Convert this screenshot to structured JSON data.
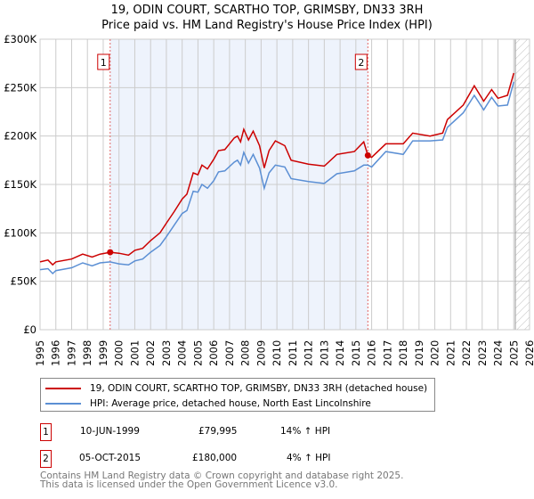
{
  "title": "19, ODIN COURT, SCARTHO TOP, GRIMSBY, DN33 3RH",
  "subtitle": "Price paid vs. HM Land Registry's House Price Index (HPI)",
  "chart_data": {
    "type": "line",
    "title": "19, ODIN COURT, SCARTHO TOP, GRIMSBY, DN33 3RH",
    "subtitle": "Price paid vs. HM Land Registry's House Price Index (HPI)",
    "xlim": [
      1995,
      2026
    ],
    "ylim": [
      0,
      300000
    ],
    "yticks": [
      0,
      50000,
      100000,
      150000,
      200000,
      250000,
      300000
    ],
    "ytick_labels": [
      "£0",
      "£50K",
      "£100K",
      "£150K",
      "£200K",
      "£250K",
      "£300K"
    ],
    "xticks": [
      "1995",
      "1996",
      "1997",
      "1998",
      "1999",
      "2000",
      "2001",
      "2002",
      "2003",
      "2004",
      "2005",
      "2006",
      "2007",
      "2008",
      "2009",
      "2010",
      "2011",
      "2012",
      "2013",
      "2014",
      "2015",
      "2016",
      "2017",
      "2018",
      "2019",
      "2020",
      "2021",
      "2022",
      "2023",
      "2024",
      "2025",
      "2026"
    ],
    "grid": true,
    "legend_placement": "below",
    "shaded_range": [
      1999.44,
      2015.76
    ],
    "forecast_hatch_from": 2025.1,
    "colors": {
      "property": "#cc0000",
      "hpi": "#5b8fd4",
      "shade": "#eef3fc"
    },
    "series": [
      {
        "name": "19, ODIN COURT, SCARTHO TOP, GRIMSBY, DN33 3RH (detached house)",
        "x": [
          1995,
          1995.5,
          1995.8,
          1996,
          1997,
          1997.7,
          1998.3,
          1998.8,
          1999.44,
          2000,
          2000.6,
          2001,
          2001.5,
          2002,
          2002.6,
          2003,
          2003.5,
          2004,
          2004.3,
          2004.7,
          2005,
          2005.25,
          2005.6,
          2006,
          2006.3,
          2006.7,
          2007.3,
          2007.5,
          2007.7,
          2007.9,
          2008.2,
          2008.5,
          2008.9,
          2009.2,
          2009.5,
          2009.9,
          2010.5,
          2010.9,
          2012,
          2013,
          2013.8,
          2014.9,
          2015.5,
          2015.76,
          2016,
          2016.9,
          2018,
          2018.6,
          2019.7,
          2020.5,
          2020.8,
          2021.8,
          2022.5,
          2023.1,
          2023.6,
          2024,
          2024.6,
          2025
        ],
        "values": [
          70000,
          72000,
          67000,
          70000,
          73000,
          78000,
          75000,
          78000,
          79995,
          79000,
          77000,
          82000,
          84000,
          92000,
          100000,
          110000,
          122000,
          135000,
          140000,
          162000,
          160000,
          170000,
          166000,
          176000,
          185000,
          186000,
          198000,
          200000,
          194000,
          207000,
          196000,
          205000,
          190000,
          167000,
          185000,
          195000,
          190000,
          175000,
          171000,
          169000,
          181000,
          184000,
          194000,
          180000,
          178000,
          192000,
          192000,
          203000,
          200000,
          203000,
          217000,
          232000,
          252000,
          236000,
          248000,
          239000,
          242000,
          265000
        ]
      },
      {
        "name": "HPI: Average price, detached house, North East Lincolnshire",
        "x": [
          1995,
          1995.5,
          1995.8,
          1996,
          1997,
          1997.7,
          1998.3,
          1998.8,
          1999.44,
          2000,
          2000.6,
          2001,
          2001.5,
          2002,
          2002.6,
          2003,
          2003.5,
          2004,
          2004.3,
          2004.7,
          2005,
          2005.25,
          2005.6,
          2006,
          2006.3,
          2006.7,
          2007.3,
          2007.5,
          2007.7,
          2007.9,
          2008.2,
          2008.5,
          2008.9,
          2009.2,
          2009.5,
          2009.9,
          2010.5,
          2010.9,
          2012,
          2013,
          2013.8,
          2014.9,
          2015.5,
          2015.76,
          2016,
          2016.9,
          2018,
          2018.6,
          2019.7,
          2020.5,
          2020.8,
          2021.8,
          2022.5,
          2023.1,
          2023.6,
          2024,
          2024.6,
          2025
        ],
        "values": [
          62000,
          63000,
          58000,
          61000,
          64000,
          69000,
          66000,
          69000,
          70000,
          68000,
          67000,
          71000,
          73000,
          80000,
          87000,
          96000,
          108000,
          120000,
          123000,
          143000,
          142000,
          150000,
          146000,
          154000,
          163000,
          164000,
          173000,
          175000,
          170000,
          183000,
          172000,
          181000,
          167000,
          146000,
          162000,
          170000,
          168000,
          156000,
          153000,
          151000,
          161000,
          164000,
          170000,
          170000,
          168000,
          184000,
          181000,
          195000,
          195000,
          196000,
          209000,
          224000,
          242000,
          227000,
          240000,
          231000,
          232000,
          256000
        ]
      }
    ],
    "sales": [
      {
        "id": "1",
        "x": 1999.44,
        "value": 79995
      },
      {
        "id": "2",
        "x": 2015.76,
        "value": 180000
      }
    ]
  },
  "transactions": [
    {
      "id": "1",
      "date": "10-JUN-1999",
      "price": "£79,995",
      "hpi": "14% ↑ HPI"
    },
    {
      "id": "2",
      "date": "05-OCT-2015",
      "price": "£180,000",
      "hpi": "4% ↑ HPI"
    }
  ],
  "legend": [
    "19, ODIN COURT, SCARTHO TOP, GRIMSBY, DN33 3RH (detached house)",
    "HPI: Average price, detached house, North East Lincolnshire"
  ],
  "footer": {
    "line1": "Contains HM Land Registry data © Crown copyright and database right 2025.",
    "line2": "This data is licensed under the Open Government Licence v3.0."
  }
}
